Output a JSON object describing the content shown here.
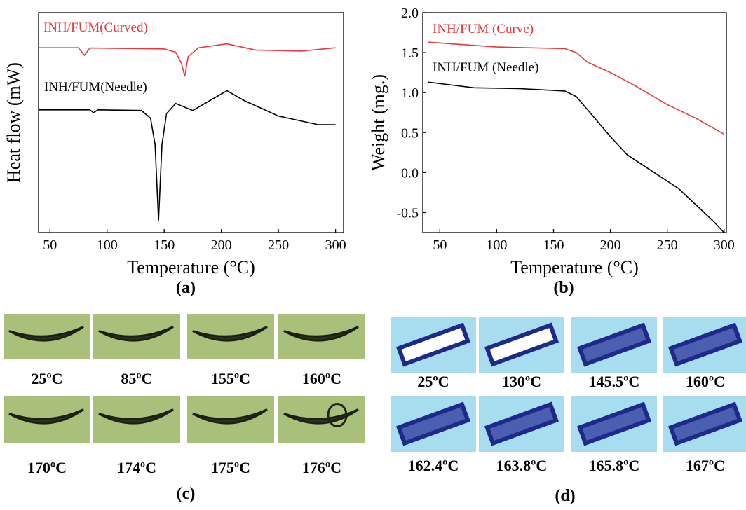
{
  "chart_data": [
    {
      "type": "line",
      "xlabel": "Temperature (°C)",
      "ylabel": "Heat flow (mW)",
      "caption": "(a)",
      "xlim": [
        40,
        307
      ],
      "xticks": [
        50,
        100,
        150,
        200,
        250,
        300
      ],
      "ylim": [
        0,
        100
      ],
      "series": [
        {
          "name": "INH/FUM(Curved)",
          "color": "#e8383d",
          "x": [
            40,
            75,
            80,
            85,
            150,
            160,
            165,
            168,
            171,
            180,
            205,
            230,
            270,
            300
          ],
          "values": [
            84,
            84,
            80.6,
            83.9,
            83.5,
            82,
            77,
            71,
            80,
            84,
            85.8,
            83,
            82.5,
            84
          ]
        },
        {
          "name": "INH/FUM(Needle)",
          "color": "#000000",
          "x": [
            40,
            85,
            88,
            92,
            130,
            138,
            142,
            145,
            148,
            152,
            160,
            175,
            190,
            205,
            220,
            250,
            285,
            300
          ],
          "values": [
            55.8,
            55.8,
            54.5,
            55.8,
            55.5,
            52,
            40,
            5.5,
            40,
            54,
            58.7,
            55.5,
            60,
            64.5,
            60,
            53,
            49,
            49
          ]
        }
      ]
    },
    {
      "type": "line",
      "xlabel": "Temperature (°C)",
      "ylabel": "Weight (mg.)",
      "caption": "(b)",
      "xlim": [
        35,
        302
      ],
      "xticks": [
        50,
        100,
        150,
        200,
        250,
        300
      ],
      "ylim": [
        -0.75,
        2.0
      ],
      "yticks": [
        -0.5,
        {
          "value": 0,
          "label": "0.0"
        },
        0.5,
        {
          "value": 1,
          "label": "1.0"
        },
        1.5,
        {
          "value": 2,
          "label": "2.0"
        }
      ],
      "series": [
        {
          "name": "INH/FUM (Curve)",
          "color": "#e8383d",
          "x": [
            40,
            100,
            160,
            170,
            180,
            200,
            220,
            250,
            275,
            300
          ],
          "values": [
            1.63,
            1.57,
            1.55,
            1.5,
            1.38,
            1.25,
            1.1,
            0.85,
            0.68,
            0.48
          ]
        },
        {
          "name": "INH/FUM (Needle)",
          "color": "#000000",
          "x": [
            40,
            80,
            120,
            160,
            170,
            185,
            200,
            215,
            230,
            260,
            290,
            300
          ],
          "values": [
            1.13,
            1.06,
            1.05,
            1.02,
            0.95,
            0.7,
            0.45,
            0.22,
            0.08,
            -0.2,
            -0.6,
            -0.75
          ]
        }
      ]
    }
  ],
  "micrographs": {
    "c": {
      "caption": "(c)",
      "labels": [
        "25ºC",
        "85ºC",
        "155ºC",
        "160ºC",
        "170ºC",
        "174ºC",
        "175ºC",
        "176ºC"
      ]
    },
    "d": {
      "caption": "(d)",
      "labels": [
        "25ºC",
        "130ºC",
        "145.5ºC",
        "160ºC",
        "162.4ºC",
        "163.8ºC",
        "165.8ºC",
        "167ºC"
      ]
    }
  }
}
